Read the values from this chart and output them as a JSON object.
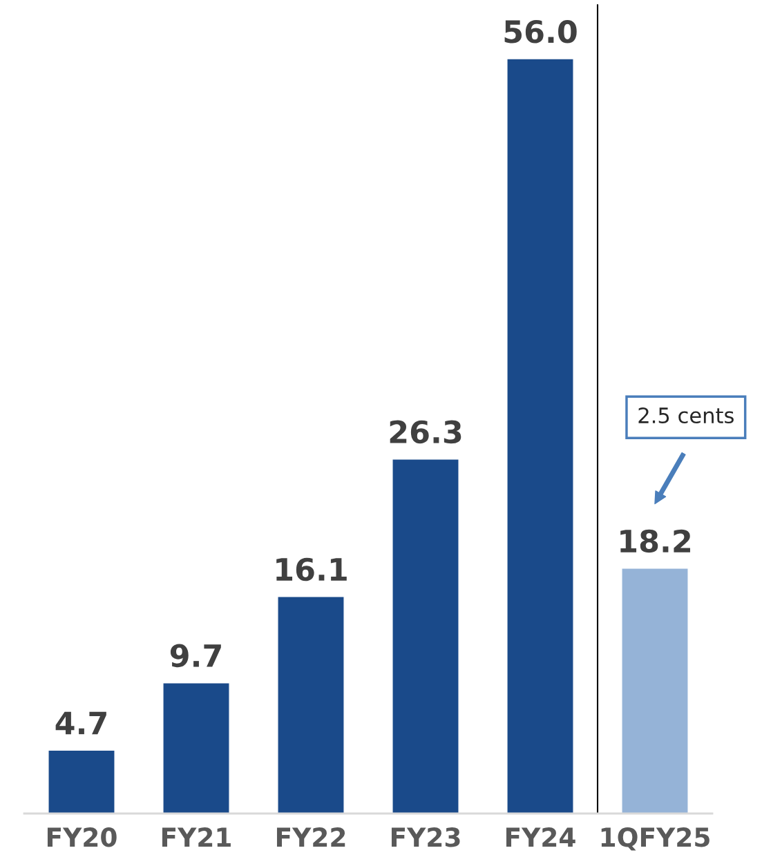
{
  "chart_data": {
    "type": "bar",
    "categories": [
      "FY20",
      "FY21",
      "FY22",
      "FY23",
      "FY24",
      "1QFY25"
    ],
    "values": [
      4.7,
      9.7,
      16.1,
      26.3,
      56.0,
      18.2
    ],
    "colors": [
      "#1a4a8a",
      "#1a4a8a",
      "#1a4a8a",
      "#1a4a8a",
      "#1a4a8a",
      "#95b3d7"
    ],
    "value_labels": [
      "4.7",
      "9.7",
      "16.1",
      "26.3",
      "56.0",
      "18.2"
    ],
    "ylim": [
      0,
      60
    ],
    "tick_labels": "x",
    "grid": false,
    "legend": false,
    "annotations": [
      "2.5 cents"
    ]
  }
}
